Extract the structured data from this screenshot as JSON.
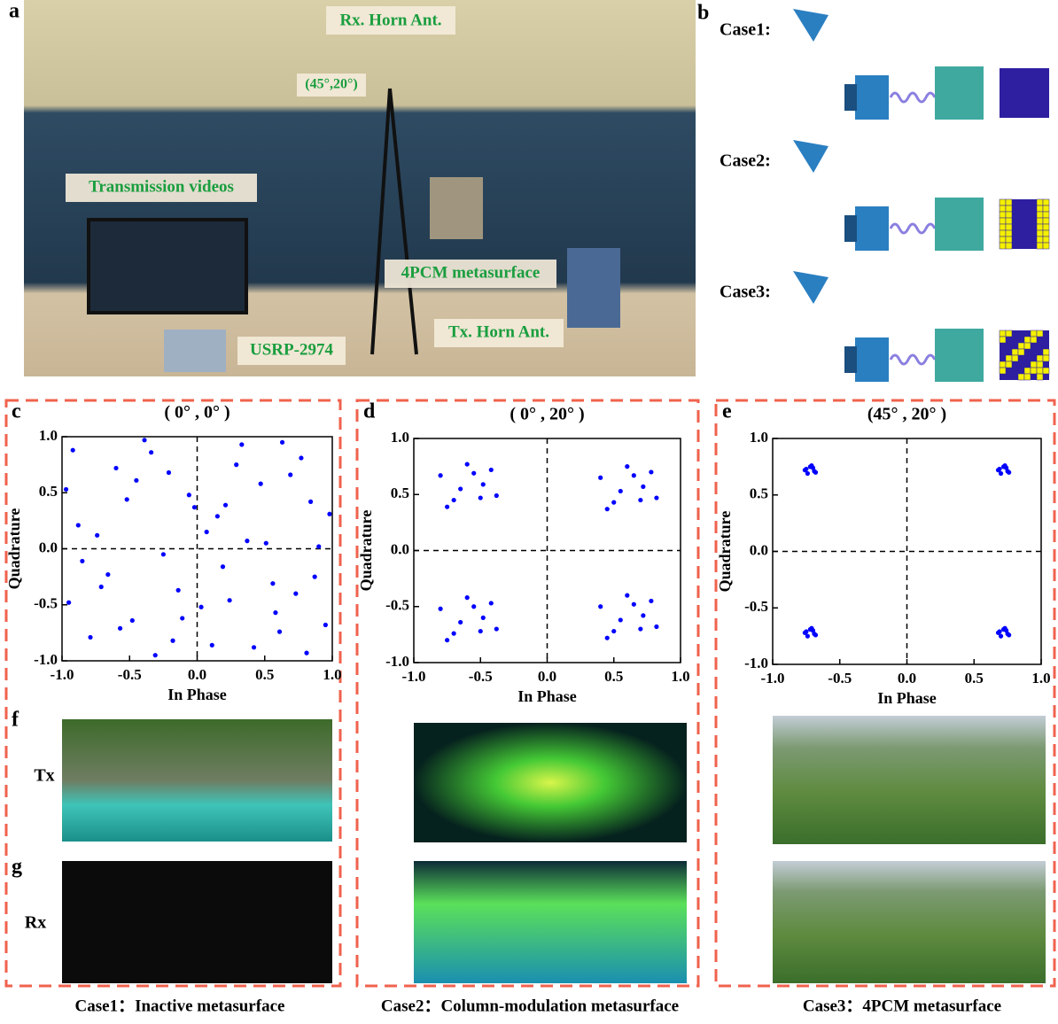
{
  "panel_labels": [
    "a",
    "b",
    "c",
    "d",
    "e",
    "f",
    "g"
  ],
  "photo_labels": {
    "rx_horn": "Rx. Horn Ant.",
    "angle": "(45°,20°)",
    "videos": "Transmission videos",
    "metasurface": "4PCM metasurface",
    "usrp": "USRP-2974",
    "tx_horn": "Tx. Horn Ant."
  },
  "cases": [
    "Case1:",
    "Case2:",
    "Case3:"
  ],
  "row_labels": [
    "Tx",
    "Rx"
  ],
  "captions": [
    "Case1：Inactive metasurface",
    "Case2：Column-modulation metasurface",
    "Case3：4PCM metasurface"
  ],
  "chart_data": [
    {
      "type": "scatter",
      "title": "( 0° , 0° )",
      "x_label": "In Phase",
      "y_label": "Quadrature",
      "color": "#0000ff",
      "zero_lines": true,
      "xlim": [
        -1,
        1
      ],
      "ylim": [
        -1,
        1
      ],
      "xticks": [
        {
          "value": -1,
          "label": "-1.0"
        },
        -0.5,
        {
          "value": 0,
          "label": "0.0"
        },
        0.5,
        {
          "value": 1,
          "label": "1.0"
        }
      ],
      "yticks": [
        {
          "value": -1,
          "label": "-1.0"
        },
        -0.5,
        {
          "value": 0,
          "label": "0.0"
        },
        0.5,
        {
          "value": 1,
          "label": "1.0"
        }
      ],
      "x": [
        -0.92,
        -0.71,
        -0.45,
        -0.18,
        0.07,
        0.33,
        0.58,
        0.84,
        -0.85,
        -0.6,
        -0.31,
        -0.02,
        0.24,
        0.51,
        0.77,
        0.95,
        -0.97,
        -0.66,
        -0.39,
        -0.11,
        0.15,
        0.42,
        0.69,
        0.9,
        -0.79,
        -0.52,
        -0.25,
        0.03,
        0.29,
        0.56,
        0.81,
        -0.88,
        -0.57,
        -0.34,
        -0.06,
        0.19,
        0.47,
        0.73,
        0.98,
        -0.74,
        -0.48,
        -0.21,
        0.11,
        0.37,
        0.63,
        0.87,
        -0.95,
        -0.14,
        0.21,
        0.61
      ],
      "values": [
        0.88,
        -0.34,
        0.61,
        -0.82,
        0.15,
        0.93,
        -0.57,
        0.42,
        -0.11,
        0.72,
        -0.95,
        0.37,
        -0.46,
        0.05,
        0.81,
        -0.68,
        0.53,
        -0.23,
        0.97,
        -0.62,
        0.29,
        -0.88,
        0.66,
        0.02,
        -0.79,
        0.44,
        -0.05,
        -0.52,
        0.75,
        -0.31,
        -0.93,
        0.21,
        -0.71,
        0.86,
        0.48,
        -0.16,
        0.58,
        -0.4,
        0.31,
        0.12,
        -0.64,
        0.68,
        -0.86,
        0.07,
        0.95,
        -0.25,
        -0.48,
        -0.37,
        0.39,
        -0.74
      ]
    },
    {
      "type": "scatter",
      "title": "( 0° , 20° )",
      "x_label": "In Phase",
      "y_label": "Quadrature",
      "color": "#0000ff",
      "zero_lines": true,
      "xlim": [
        -1,
        1
      ],
      "ylim": [
        -1,
        1
      ],
      "xticks": [
        {
          "value": -1,
          "label": "-1.0"
        },
        -0.5,
        {
          "value": 0,
          "label": "0.0"
        },
        0.5,
        {
          "value": 1,
          "label": "1.0"
        }
      ],
      "yticks": [
        {
          "value": -1,
          "label": "-1.0"
        },
        -0.5,
        {
          "value": 0,
          "label": "0.0"
        },
        0.5,
        {
          "value": 1,
          "label": "1.0"
        }
      ],
      "x": [
        -0.8,
        -0.7,
        -0.6,
        -0.48,
        -0.38,
        -0.75,
        -0.55,
        -0.42,
        -0.65,
        -0.5,
        0.4,
        0.5,
        0.6,
        0.72,
        0.82,
        0.45,
        0.65,
        0.78,
        0.55,
        0.7,
        -0.8,
        -0.7,
        -0.6,
        -0.48,
        -0.38,
        -0.75,
        -0.55,
        -0.42,
        -0.65,
        -0.5,
        0.4,
        0.5,
        0.6,
        0.72,
        0.82,
        0.45,
        0.65,
        0.78,
        0.55,
        0.7
      ],
      "values": [
        0.67,
        0.45,
        0.77,
        0.59,
        0.49,
        0.39,
        0.69,
        0.72,
        0.55,
        0.47,
        0.65,
        0.43,
        0.75,
        0.57,
        0.47,
        0.37,
        0.67,
        0.7,
        0.53,
        0.45,
        -0.52,
        -0.74,
        -0.42,
        -0.6,
        -0.7,
        -0.8,
        -0.5,
        -0.47,
        -0.64,
        -0.72,
        -0.5,
        -0.72,
        -0.4,
        -0.58,
        -0.68,
        -0.78,
        -0.48,
        -0.45,
        -0.62,
        -0.7
      ]
    },
    {
      "type": "scatter",
      "title": "(45° , 20° )",
      "x_label": "In Phase",
      "y_label": "Quadrature",
      "color": "#0000ff",
      "zero_lines": true,
      "xlim": [
        -1,
        1
      ],
      "ylim": [
        -1,
        1
      ],
      "xticks": [
        {
          "value": -1,
          "label": "-1.0"
        },
        -0.5,
        {
          "value": 0,
          "label": "0.0"
        },
        0.5,
        {
          "value": 1,
          "label": "1.0"
        }
      ],
      "yticks": [
        {
          "value": -1,
          "label": "-1.0"
        },
        -0.5,
        {
          "value": 0,
          "label": "0.0"
        },
        0.5,
        {
          "value": 1,
          "label": "1.0"
        }
      ],
      "x": [
        -0.75,
        -0.72,
        -0.69,
        -0.74,
        -0.7,
        -0.68,
        -0.76,
        -0.71,
        0.69,
        0.72,
        0.75,
        0.7,
        0.74,
        0.76,
        0.68,
        0.73,
        -0.75,
        -0.72,
        -0.69,
        -0.74,
        -0.7,
        -0.68,
        -0.76,
        -0.71,
        0.69,
        0.72,
        0.75,
        0.7,
        0.74,
        0.76,
        0.68,
        0.73
      ],
      "values": [
        0.73,
        0.75,
        0.71,
        0.69,
        0.74,
        0.7,
        0.72,
        0.76,
        0.73,
        0.75,
        0.71,
        0.69,
        0.74,
        0.7,
        0.72,
        0.76,
        -0.71,
        -0.69,
        -0.73,
        -0.75,
        -0.7,
        -0.74,
        -0.72,
        -0.68,
        -0.71,
        -0.69,
        -0.73,
        -0.75,
        -0.7,
        -0.74,
        -0.72,
        -0.68
      ]
    }
  ]
}
